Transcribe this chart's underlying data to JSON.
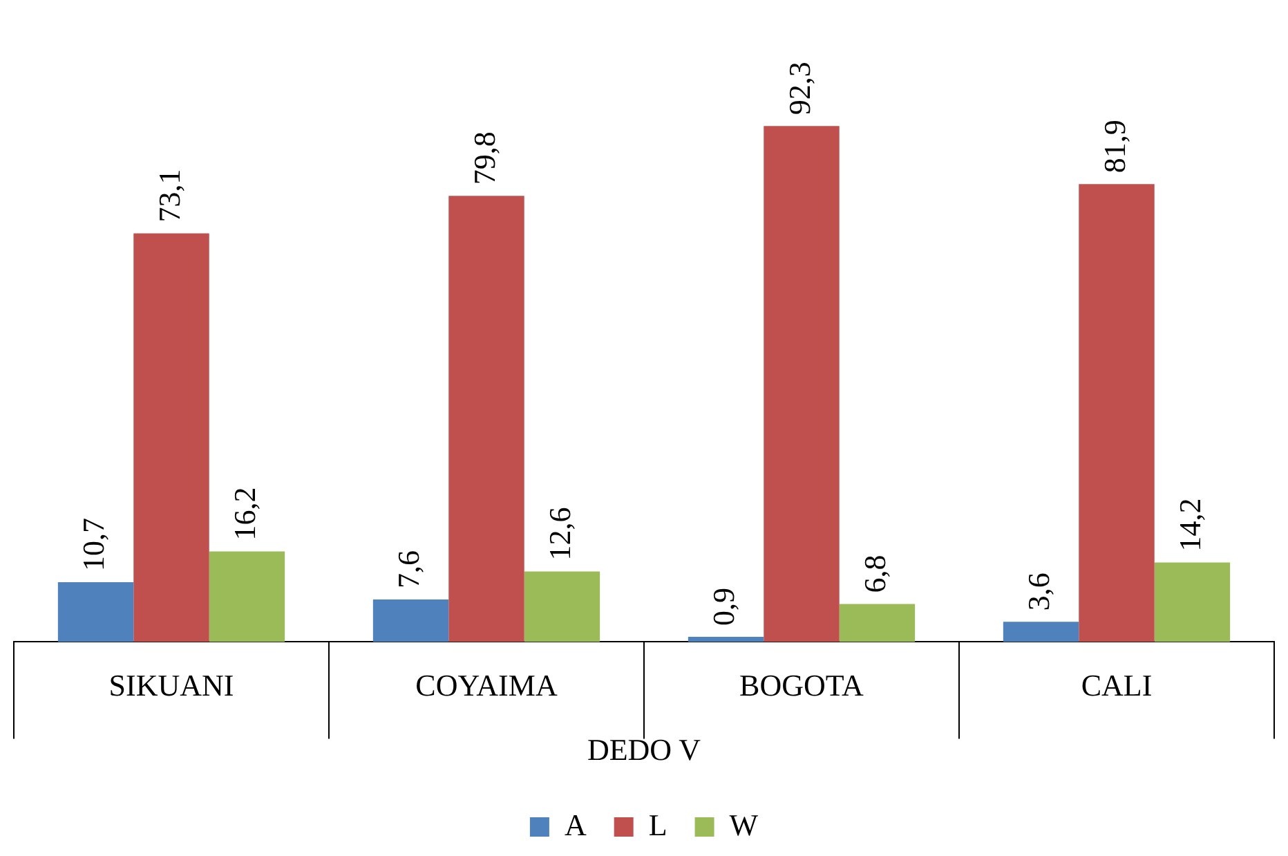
{
  "chart_data": {
    "type": "bar",
    "xlabel": "DEDO V",
    "categories": [
      "SIKUANI",
      "COYAIMA",
      "BOGOTA",
      "CALI"
    ],
    "series": [
      {
        "name": "A",
        "color": "#4f81bd",
        "values": [
          10.7,
          7.6,
          0.9,
          3.6
        ],
        "value_labels": [
          "10,7",
          "7,6",
          "0,9",
          "3,6"
        ]
      },
      {
        "name": "L",
        "color": "#c0504d",
        "values": [
          73.1,
          79.8,
          92.3,
          81.9
        ],
        "value_labels": [
          "73,1",
          "79,8",
          "92,3",
          "81,9"
        ]
      },
      {
        "name": "W",
        "color": "#9bbb59",
        "values": [
          16.2,
          12.6,
          6.8,
          14.2
        ],
        "value_labels": [
          "16,2",
          "12,6",
          "6,8",
          "14,2"
        ]
      }
    ],
    "legend": "bottom",
    "grid": false
  }
}
